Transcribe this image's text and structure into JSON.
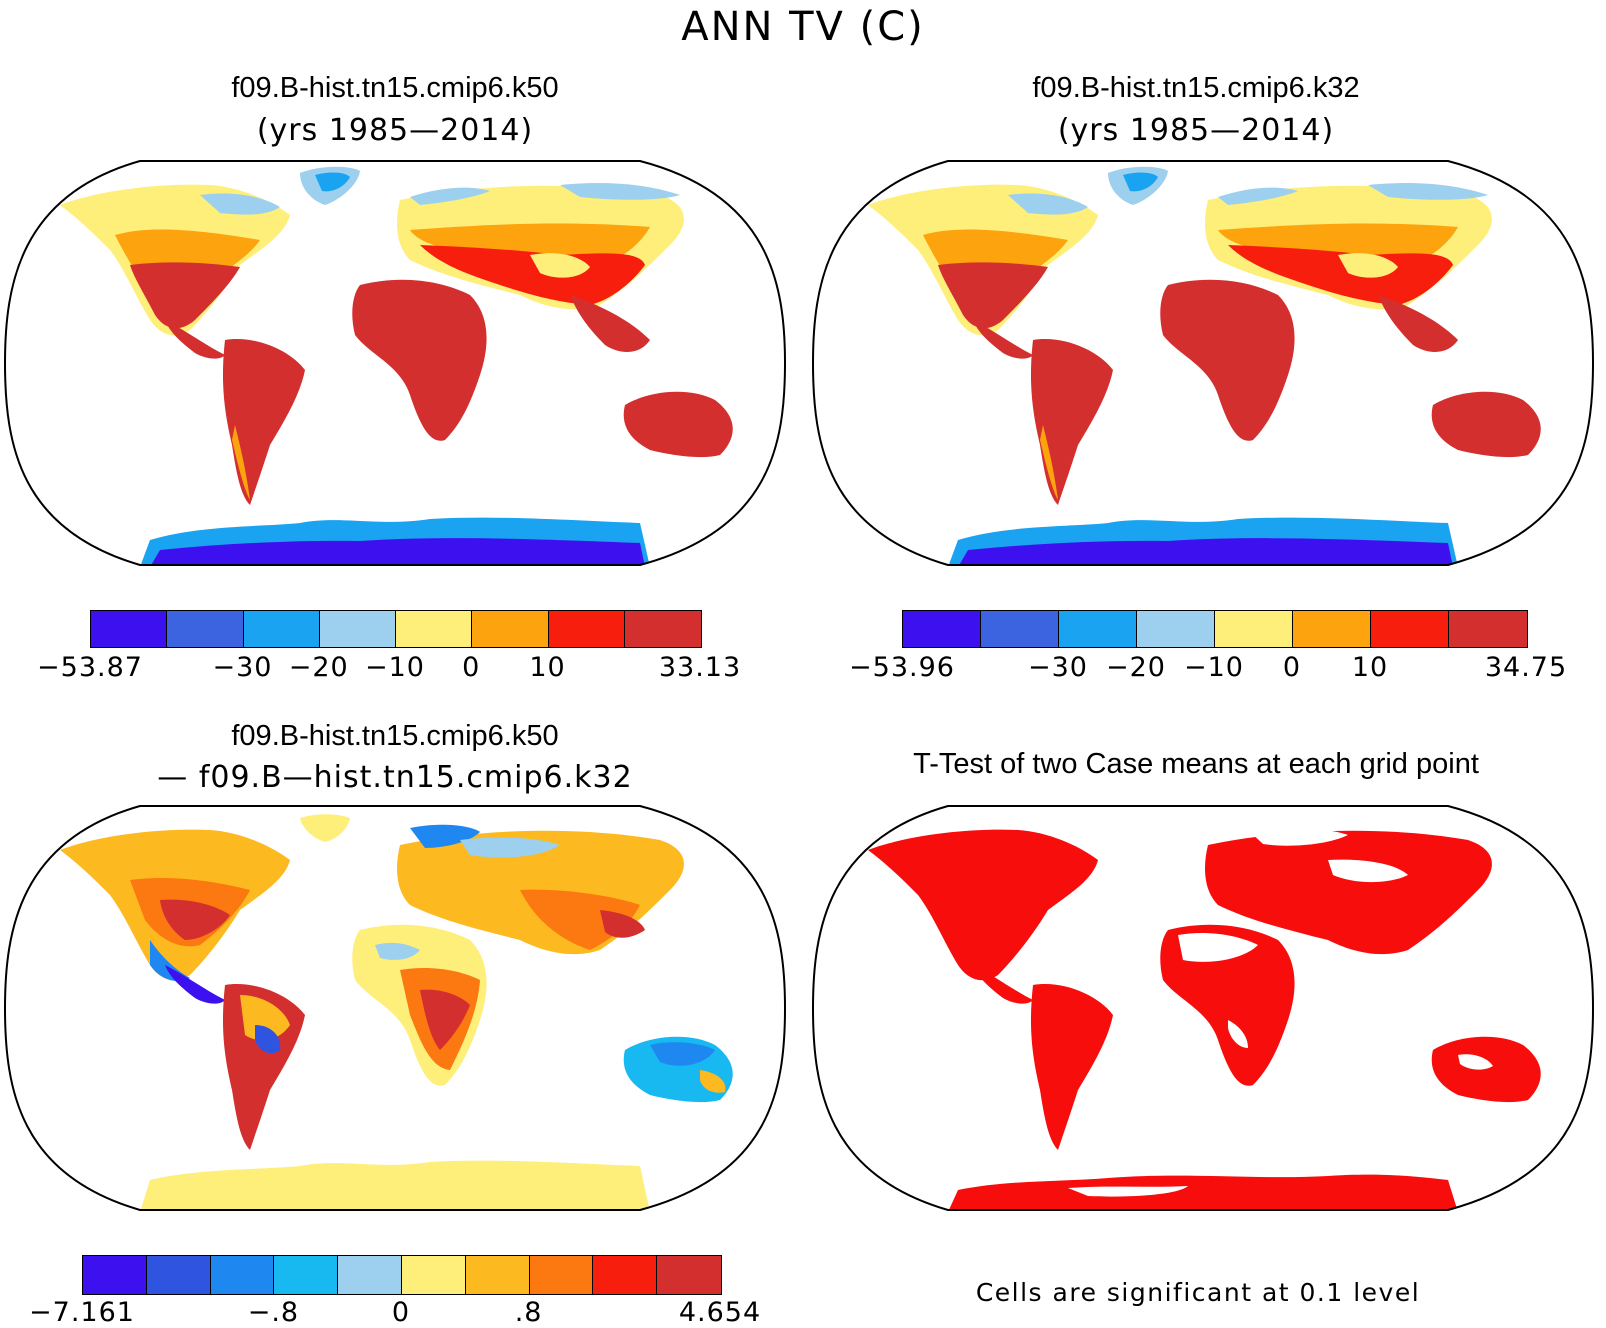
{
  "title": "ANN TV (C)",
  "panels": [
    {
      "title": "f09.B-hist.tn15.cmip6.k50",
      "subtitle": "(yrs 1985—2014)",
      "colorbar": {
        "colors": [
          "#3d10f0",
          "#3d64e0",
          "#1aa3f0",
          "#9dd0ee",
          "#fdef7a",
          "#fca30d",
          "#f81e0d",
          "#d32f2f"
        ],
        "labels": [
          "−53.87",
          "−30",
          "−20",
          "−10",
          "0",
          "10",
          "33.13"
        ]
      }
    },
    {
      "title": "f09.B-hist.tn15.cmip6.k32",
      "subtitle": "(yrs 1985—2014)",
      "colorbar": {
        "colors": [
          "#3d10f0",
          "#3d64e0",
          "#1aa3f0",
          "#9dd0ee",
          "#fdef7a",
          "#fca30d",
          "#f81e0d",
          "#d32f2f"
        ],
        "labels": [
          "−53.96",
          "−30",
          "−20",
          "−10",
          "0",
          "10",
          "34.75"
        ]
      }
    },
    {
      "title": "f09.B-hist.tn15.cmip6.k50",
      "subtitle": "— f09.B—hist.tn15.cmip6.k32",
      "colorbar": {
        "colors": [
          "#3d10f0",
          "#2f55e0",
          "#1e88f0",
          "#18b8f0",
          "#9dd0ee",
          "#fdef7a",
          "#fcb920",
          "#fc7810",
          "#f81e0d",
          "#d32f2f"
        ],
        "labels": [
          "−7.161",
          "−.8",
          "0",
          ".8",
          "4.654"
        ]
      }
    },
    {
      "title": "T-Test of two Case means at each grid point",
      "footnote": "Cells are significant at 0.1 level"
    }
  ]
}
